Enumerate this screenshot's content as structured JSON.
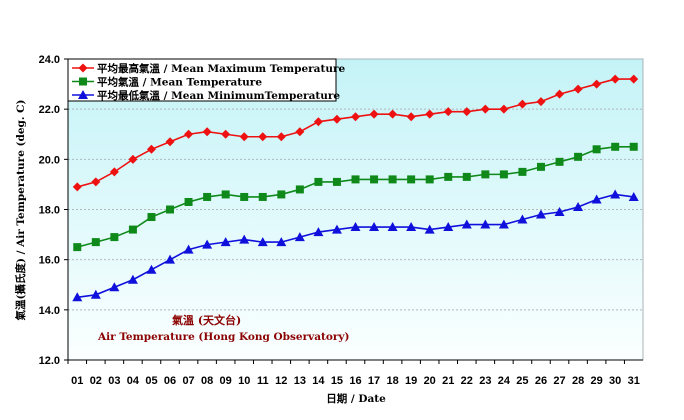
{
  "chart_data": {
    "type": "line",
    "xlabel": "日期 / Date",
    "ylabel": "氣溫(攝氏度) / Air Temperature (deg. C)",
    "ylim": [
      12,
      24
    ],
    "yticks": [
      "12.0",
      "14.0",
      "16.0",
      "18.0",
      "20.0",
      "22.0",
      "24.0"
    ],
    "categories": [
      "01",
      "02",
      "03",
      "04",
      "05",
      "06",
      "07",
      "08",
      "09",
      "10",
      "11",
      "12",
      "13",
      "14",
      "15",
      "16",
      "17",
      "18",
      "19",
      "20",
      "21",
      "22",
      "23",
      "24",
      "25",
      "26",
      "27",
      "28",
      "29",
      "30",
      "31"
    ],
    "grid": true,
    "legend": "top-left",
    "annotation": {
      "line1": "氣溫 (天文台)",
      "line2": "Air Temperature (Hong Kong Observatory)",
      "color": "#8b0000"
    },
    "series": [
      {
        "name": "平均最高氣溫 / Mean Maximum Temperature",
        "color": "#ee1111",
        "marker": "diamond",
        "values": [
          18.9,
          19.1,
          19.5,
          20.0,
          20.4,
          20.7,
          21.0,
          21.1,
          21.0,
          20.9,
          20.9,
          20.9,
          21.1,
          21.5,
          21.6,
          21.7,
          21.8,
          21.8,
          21.7,
          21.8,
          21.9,
          21.9,
          22.0,
          22.0,
          22.2,
          22.3,
          22.6,
          22.8,
          23.0,
          23.2,
          23.2
        ]
      },
      {
        "name": "平均氣溫 / Mean Temperature",
        "color": "#0f8a1a",
        "marker": "square",
        "values": [
          16.5,
          16.7,
          16.9,
          17.2,
          17.7,
          18.0,
          18.3,
          18.5,
          18.6,
          18.5,
          18.5,
          18.6,
          18.8,
          19.1,
          19.1,
          19.2,
          19.2,
          19.2,
          19.2,
          19.2,
          19.3,
          19.3,
          19.4,
          19.4,
          19.5,
          19.7,
          19.9,
          20.1,
          20.4,
          20.5,
          20.5
        ]
      },
      {
        "name": "平均最低氣溫 / Mean MinimumTemperature",
        "color": "#1010dd",
        "marker": "triangle",
        "values": [
          14.5,
          14.6,
          14.9,
          15.2,
          15.6,
          16.0,
          16.4,
          16.6,
          16.7,
          16.8,
          16.7,
          16.7,
          16.9,
          17.1,
          17.2,
          17.3,
          17.3,
          17.3,
          17.3,
          17.2,
          17.3,
          17.4,
          17.4,
          17.4,
          17.6,
          17.8,
          17.9,
          18.1,
          18.4,
          18.6,
          18.5
        ]
      }
    ]
  }
}
